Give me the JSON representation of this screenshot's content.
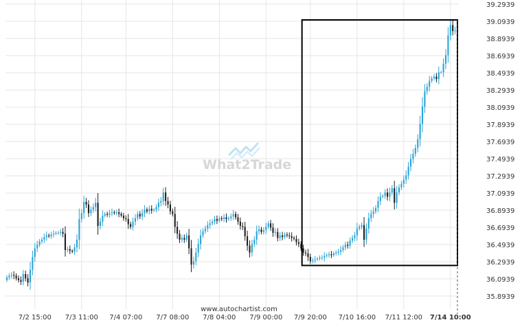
{
  "chart_data": {
    "type": "candlestick",
    "watermark": "What2Trade",
    "source": "www.autochartist.com",
    "y_ticks": [
      "39.2939",
      "39.0939",
      "38.8939",
      "38.6939",
      "38.4939",
      "38.2939",
      "38.0939",
      "37.8939",
      "37.6939",
      "37.4939",
      "37.2939",
      "37.0939",
      "36.8939",
      "36.6939",
      "36.4939",
      "36.2939",
      "36.0939",
      "35.8939"
    ],
    "ylim": [
      35.79,
      39.33
    ],
    "x_ticks": [
      "7/2 15:00",
      "7/3 11:00",
      "7/4 07:00",
      "7/7 08:00",
      "7/8 04:00",
      "7/9 00:00",
      "7/9 20:00",
      "7/10 16:00",
      "7/11 12:00",
      "7/14 10:00"
    ],
    "x_tick_bar_index": [
      12,
      32,
      51,
      71,
      91,
      111,
      130,
      150,
      170,
      190
    ],
    "n_bars": 194,
    "pattern_box": {
      "start_bar": 127,
      "end_bar": 193,
      "high": 39.11,
      "low": 36.25
    },
    "colors": {
      "up": "#29a3d6",
      "down": "#1e1e1e",
      "grid": "#e6e6e6",
      "box": "#000000",
      "text": "#333333"
    },
    "close": [
      36.11,
      36.13,
      36.14,
      36.13,
      36.1,
      36.08,
      36.06,
      36.15,
      36.1,
      36.05,
      36.2,
      36.35,
      36.45,
      36.49,
      36.53,
      36.55,
      36.58,
      36.6,
      36.59,
      36.61,
      36.62,
      36.63,
      36.63,
      36.64,
      36.62,
      36.43,
      36.44,
      36.42,
      36.41,
      36.46,
      36.55,
      36.79,
      36.86,
      36.99,
      36.96,
      36.86,
      36.9,
      36.93,
      36.98,
      36.71,
      36.76,
      36.83,
      36.85,
      36.84,
      36.86,
      36.87,
      36.86,
      36.87,
      36.85,
      36.83,
      36.8,
      36.79,
      36.73,
      36.7,
      36.76,
      36.8,
      36.85,
      36.82,
      36.86,
      36.9,
      36.88,
      36.91,
      36.89,
      36.9,
      36.93,
      36.98,
      37.0,
      37.1,
      37.0,
      36.96,
      36.88,
      36.85,
      36.7,
      36.62,
      36.55,
      36.57,
      36.55,
      36.6,
      36.45,
      36.26,
      36.3,
      36.4,
      36.5,
      36.6,
      36.65,
      36.68,
      36.72,
      36.74,
      36.76,
      36.79,
      36.77,
      36.8,
      36.79,
      36.81,
      36.79,
      36.8,
      36.82,
      36.85,
      36.81,
      36.76,
      36.71,
      36.7,
      36.59,
      36.48,
      36.4,
      36.5,
      36.55,
      36.65,
      36.67,
      36.64,
      36.66,
      36.7,
      36.74,
      36.69,
      36.63,
      36.64,
      36.57,
      36.6,
      36.58,
      36.61,
      36.6,
      36.59,
      36.57,
      36.56,
      36.52,
      36.5,
      36.45,
      36.4,
      36.39,
      36.35,
      36.3,
      36.31,
      36.32,
      36.33,
      36.34,
      36.34,
      36.36,
      36.37,
      36.38,
      36.37,
      36.39,
      36.4,
      36.41,
      36.43,
      36.46,
      36.49,
      36.48,
      36.54,
      36.57,
      36.6,
      36.68,
      36.7,
      36.72,
      36.55,
      36.68,
      36.8,
      36.85,
      36.88,
      36.92,
      37.0,
      37.05,
      37.06,
      37.1,
      37.05,
      37.1,
      37.15,
      36.98,
      37.1,
      37.16,
      37.2,
      37.25,
      37.3,
      37.4,
      37.49,
      37.55,
      37.62,
      37.72,
      37.9,
      38.1,
      38.28,
      38.33,
      38.4,
      38.43,
      38.45,
      38.42,
      38.5,
      38.5,
      38.6,
      38.7,
      38.93,
      39.05,
      38.98,
      38.99,
      39.06
    ]
  }
}
